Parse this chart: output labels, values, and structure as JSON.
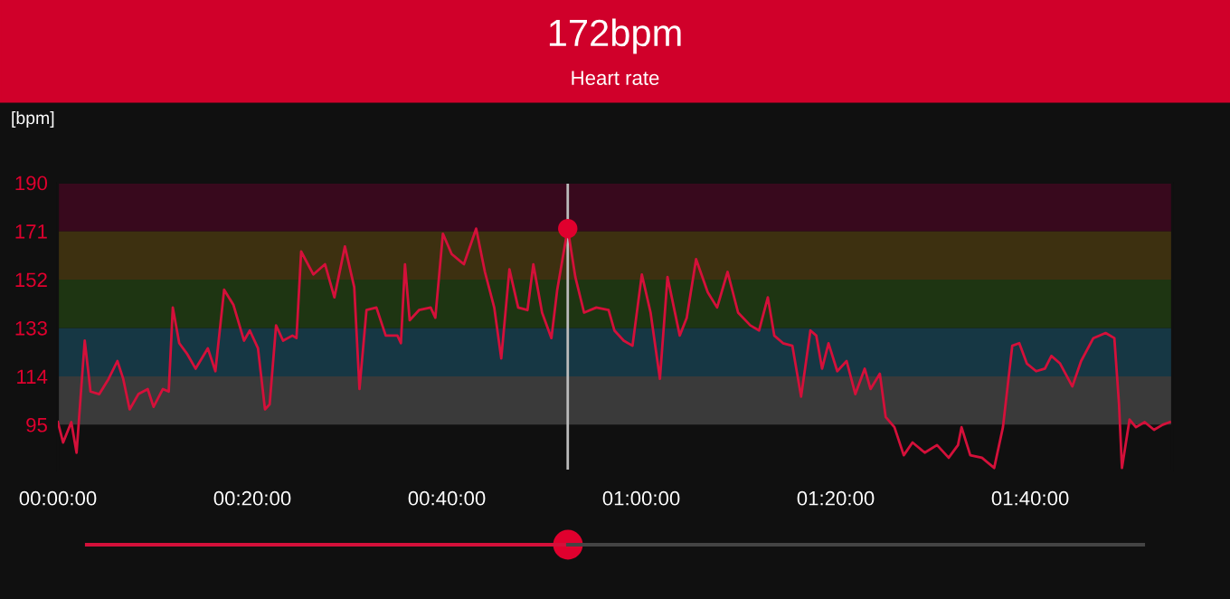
{
  "chart_data": {
    "type": "line",
    "title": "172bpm",
    "subtitle": "Heart rate",
    "ylabel": "[bpm]",
    "xlim": [
      0,
      1.91
    ],
    "ylim": [
      77,
      190
    ],
    "xticks": [
      {
        "value": 0,
        "label": "00:00:00"
      },
      {
        "value": 0.3333,
        "label": "00:20:00"
      },
      {
        "value": 0.6667,
        "label": "00:40:00"
      },
      {
        "value": 1,
        "label": "01:00:00"
      },
      {
        "value": 1.3333,
        "label": "01:20:00"
      },
      {
        "value": 1.6667,
        "label": "01:40:00"
      }
    ],
    "yticks": [
      95,
      114,
      133,
      152,
      171,
      190
    ],
    "grid": false,
    "marker": "none",
    "line_style": "solid",
    "bands": [
      {
        "axis": "y",
        "from": 95,
        "to": 114,
        "color": "#3a3a3a"
      },
      {
        "axis": "y",
        "from": 114,
        "to": 133,
        "color": "#163744"
      },
      {
        "axis": "y",
        "from": 133,
        "to": 152,
        "color": "#1e3512"
      },
      {
        "axis": "y",
        "from": 152,
        "to": 171,
        "color": "#3d3010"
      },
      {
        "axis": "y",
        "from": 171,
        "to": 190,
        "color": "#38091d"
      }
    ],
    "ref_lines": [
      {
        "axis": "x",
        "value": 0.874,
        "color": "#bbbbbb"
      }
    ],
    "series": [
      {
        "color": "#d4103a",
        "x": [
          0,
          0.009,
          0.023,
          0.032,
          0.046,
          0.056,
          0.071,
          0.087,
          0.102,
          0.112,
          0.123,
          0.138,
          0.154,
          0.164,
          0.18,
          0.19,
          0.197,
          0.208,
          0.221,
          0.236,
          0.257,
          0.27,
          0.285,
          0.301,
          0.319,
          0.329,
          0.343,
          0.355,
          0.363,
          0.374,
          0.386,
          0.402,
          0.409,
          0.417,
          0.438,
          0.458,
          0.474,
          0.492,
          0.508,
          0.517,
          0.529,
          0.546,
          0.562,
          0.582,
          0.588,
          0.595,
          0.603,
          0.619,
          0.639,
          0.647,
          0.66,
          0.675,
          0.696,
          0.717,
          0.732,
          0.748,
          0.76,
          0.774,
          0.789,
          0.805,
          0.815,
          0.83,
          0.846,
          0.856,
          0.874,
          0.887,
          0.902,
          0.923,
          0.944,
          0.954,
          0.97,
          0.985,
          1.001,
          1.016,
          1.032,
          1.045,
          1.066,
          1.078,
          1.094,
          1.114,
          1.13,
          1.148,
          1.166,
          1.187,
          1.202,
          1.217,
          1.228,
          1.243,
          1.259,
          1.274,
          1.29,
          1.3,
          1.31,
          1.321,
          1.336,
          1.352,
          1.367,
          1.383,
          1.393,
          1.409,
          1.419,
          1.434,
          1.45,
          1.465,
          1.486,
          1.507,
          1.527,
          1.543,
          1.549,
          1.564,
          1.584,
          1.605,
          1.62,
          1.636,
          1.648,
          1.661,
          1.677,
          1.692,
          1.703,
          1.718,
          1.739,
          1.754,
          1.775,
          1.796,
          1.811,
          1.819,
          1.824,
          1.837,
          1.848,
          1.863,
          1.879,
          1.894,
          1.906
        ],
        "values": [
          96,
          88,
          96,
          84,
          128,
          108,
          107,
          113,
          120,
          113,
          101,
          107,
          109,
          102,
          109,
          108,
          141,
          127,
          123,
          117,
          125,
          116,
          148,
          142,
          128,
          132,
          125,
          101,
          103,
          134,
          128,
          130,
          129,
          163,
          154,
          158,
          145,
          165,
          149,
          109,
          140,
          141,
          130,
          130,
          127,
          158,
          136,
          140,
          141,
          137,
          170,
          162,
          158,
          172,
          155,
          141,
          121,
          156,
          141,
          140,
          158,
          139,
          129,
          148,
          172,
          153,
          139,
          141,
          140,
          132,
          128,
          126,
          154,
          139,
          113,
          153,
          130,
          137,
          160,
          147,
          141,
          155,
          139,
          134,
          132,
          145,
          130,
          127,
          126,
          106,
          132,
          130,
          117,
          127,
          116,
          120,
          107,
          117,
          109,
          115,
          98,
          94,
          83,
          88,
          84,
          87,
          82,
          87,
          94,
          83,
          82,
          78,
          94,
          126,
          127,
          119,
          116,
          117,
          122,
          119,
          110,
          120,
          129,
          131,
          129,
          103,
          78,
          97,
          94,
          96,
          93,
          95,
          96
        ]
      },
      {
        "type": "scatter",
        "marker": "circle",
        "color": "#e0002e",
        "x": [
          0.874
        ],
        "values": [
          172
        ]
      }
    ]
  }
}
